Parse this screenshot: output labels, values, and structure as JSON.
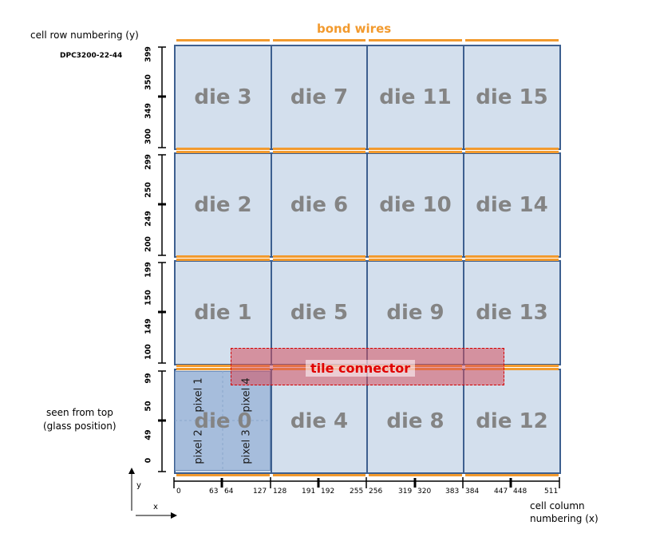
{
  "labels": {
    "bond_wires": "bond wires",
    "row_numbering": "cell row numbering (y)",
    "device_id": "DPC3200-22-44",
    "seen_from_top": "seen from top",
    "glass_position": "(glass position)",
    "column_numbering_1": "cell column",
    "column_numbering_2": "numbering (x)",
    "tile_connector": "tile connector",
    "axis_x": "x",
    "axis_y": "y"
  },
  "dies": [
    [
      "die 3",
      "die 7",
      "die 11",
      "die 15"
    ],
    [
      "die 2",
      "die 6",
      "die 10",
      "die 14"
    ],
    [
      "die 1",
      "die 5",
      "die 9",
      "die 13"
    ],
    [
      "die 0",
      "die 4",
      "die 8",
      "die 12"
    ]
  ],
  "pixels": [
    "pixel 1",
    "pixel 4",
    "pixel 2",
    "pixel 3"
  ],
  "y_ticks": [
    [
      "399",
      "350",
      "349",
      "300"
    ],
    [
      "299",
      "250",
      "249",
      "200"
    ],
    [
      "199",
      "150",
      "149",
      "100"
    ],
    [
      "99",
      "50",
      "49",
      "0"
    ]
  ],
  "x_ticks": [
    "0",
    "63",
    "64",
    "127",
    "128",
    "191",
    "192",
    "255",
    "256",
    "319",
    "320",
    "383",
    "384",
    "447",
    "448",
    "511"
  ],
  "colors": {
    "die_fill": "#d3dfed",
    "die_border": "#3d5f8f",
    "bond_wire": "#f29a2e",
    "tile_connector": "#e00000",
    "pixel_region": "#a6bddc"
  }
}
